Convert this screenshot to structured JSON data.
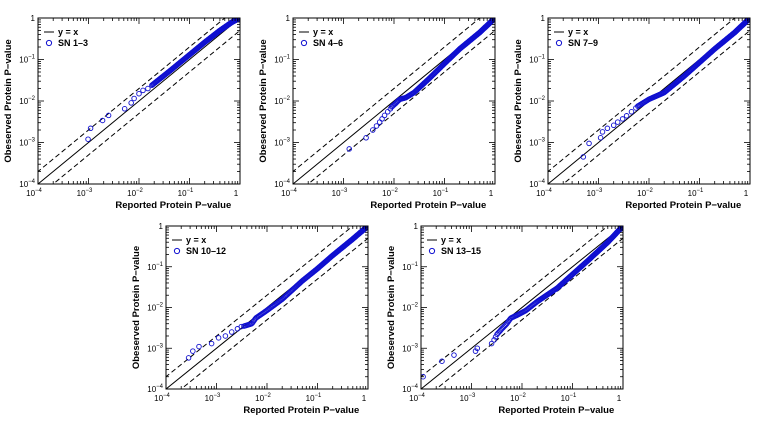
{
  "chart_data": [
    {
      "type": "scatter",
      "xlabel": "Reported Protein P−value",
      "ylabel": "Obeserved Protein P−value",
      "xscale": "log",
      "yscale": "log",
      "xlim": [
        0.0001,
        1
      ],
      "ylim": [
        0.0001,
        1
      ],
      "tick_labels": [
        "10",
        "10",
        "10",
        "10",
        "1"
      ],
      "tick_exponents": [
        "−4",
        "−3",
        "−2",
        "−1",
        ""
      ],
      "legend": {
        "position": "top-left",
        "entries": [
          {
            "label": "y = x",
            "marker": "line"
          },
          {
            "label": "SN 1–3",
            "marker": "circle"
          }
        ]
      },
      "reference_lines": [
        {
          "name": "y = x",
          "style": "solid",
          "factor": 1
        },
        {
          "style": "dashed",
          "factor": 2
        },
        {
          "style": "dashed",
          "factor": 0.5
        }
      ],
      "series": [
        {
          "name": "SN 1–3",
          "points": [
            [
              0.00098,
              0.0012
            ],
            [
              0.0011,
              0.0022
            ],
            [
              0.0019,
              0.0034
            ],
            [
              0.0025,
              0.0045
            ],
            [
              0.0052,
              0.0065
            ],
            [
              0.007,
              0.009
            ],
            [
              0.008,
              0.0115
            ],
            [
              0.01,
              0.015
            ],
            [
              0.012,
              0.018
            ],
            [
              0.015,
              0.02
            ]
          ],
          "tail": [
            [
              0.018,
              0.024
            ],
            [
              0.04,
              0.052
            ],
            [
              0.1,
              0.13
            ],
            [
              0.2,
              0.26
            ],
            [
              0.4,
              0.5
            ],
            [
              0.7,
              0.8
            ],
            [
              1,
              1
            ]
          ],
          "tail_density": 240
        }
      ]
    },
    {
      "type": "scatter",
      "xlabel": "Reported Protein P−value",
      "ylabel": "Obeserved Protein P−value",
      "xscale": "log",
      "yscale": "log",
      "xlim": [
        0.0001,
        1
      ],
      "ylim": [
        0.0001,
        1
      ],
      "tick_labels": [
        "10",
        "10",
        "10",
        "10",
        "1"
      ],
      "tick_exponents": [
        "−4",
        "−3",
        "−2",
        "−1",
        ""
      ],
      "legend": {
        "position": "top-left",
        "entries": [
          {
            "label": "y = x",
            "marker": "line"
          },
          {
            "label": "SN 4–6",
            "marker": "circle"
          }
        ]
      },
      "reference_lines": [
        {
          "name": "y = x",
          "style": "solid",
          "factor": 1
        },
        {
          "style": "dashed",
          "factor": 2
        },
        {
          "style": "dashed",
          "factor": 0.5
        }
      ],
      "series": [
        {
          "name": "SN 4–6",
          "points": [
            [
              0.0013,
              0.0007
            ],
            [
              0.0028,
              0.0013
            ],
            [
              0.0038,
              0.002
            ],
            [
              0.0045,
              0.0025
            ],
            [
              0.0052,
              0.0031
            ],
            [
              0.0058,
              0.0037
            ],
            [
              0.0065,
              0.0045
            ],
            [
              0.0075,
              0.0055
            ],
            [
              0.0085,
              0.0065
            ]
          ],
          "tail": [
            [
              0.009,
              0.0072
            ],
            [
              0.011,
              0.009
            ],
            [
              0.013,
              0.011
            ],
            [
              0.017,
              0.012
            ],
            [
              0.025,
              0.016
            ],
            [
              0.05,
              0.035
            ],
            [
              0.1,
              0.08
            ],
            [
              0.2,
              0.18
            ],
            [
              0.5,
              0.45
            ],
            [
              1,
              1
            ]
          ],
          "tail_density": 240
        }
      ]
    },
    {
      "type": "scatter",
      "xlabel": "Reported Protein P−value",
      "ylabel": "Obeserved Protein P−value",
      "xscale": "log",
      "yscale": "log",
      "xlim": [
        0.0001,
        1
      ],
      "ylim": [
        0.0001,
        1
      ],
      "tick_labels": [
        "10",
        "10",
        "10",
        "10",
        "1"
      ],
      "tick_exponents": [
        "−4",
        "−3",
        "−2",
        "−1",
        ""
      ],
      "legend": {
        "position": "top-left",
        "entries": [
          {
            "label": "y = x",
            "marker": "line"
          },
          {
            "label": "SN 7–9",
            "marker": "circle"
          }
        ]
      },
      "reference_lines": [
        {
          "name": "y = x",
          "style": "solid",
          "factor": 1
        },
        {
          "style": "dashed",
          "factor": 2
        },
        {
          "style": "dashed",
          "factor": 0.5
        }
      ],
      "series": [
        {
          "name": "SN 7–9",
          "points": [
            [
              0.0005,
              0.00045
            ],
            [
              0.00065,
              0.00095
            ],
            [
              0.0011,
              0.0013
            ],
            [
              0.0012,
              0.0018
            ],
            [
              0.0015,
              0.0022
            ],
            [
              0.002,
              0.0026
            ],
            [
              0.0024,
              0.0031
            ],
            [
              0.003,
              0.0037
            ],
            [
              0.0036,
              0.0044
            ],
            [
              0.0045,
              0.0055
            ],
            [
              0.0055,
              0.0068
            ]
          ],
          "tail": [
            [
              0.006,
              0.0075
            ],
            [
              0.01,
              0.011
            ],
            [
              0.02,
              0.016
            ],
            [
              0.05,
              0.04
            ],
            [
              0.1,
              0.085
            ],
            [
              0.2,
              0.18
            ],
            [
              0.5,
              0.45
            ],
            [
              1,
              1
            ]
          ],
          "tail_density": 240
        }
      ]
    },
    {
      "type": "scatter",
      "xlabel": "Reported Protein P−value",
      "ylabel": "Obeserved Protein P−value",
      "xscale": "log",
      "yscale": "log",
      "xlim": [
        0.0001,
        1
      ],
      "ylim": [
        0.0001,
        1
      ],
      "tick_labels": [
        "10",
        "10",
        "10",
        "10",
        "1"
      ],
      "tick_exponents": [
        "−4",
        "−3",
        "−2",
        "−1",
        ""
      ],
      "legend": {
        "position": "top-left",
        "entries": [
          {
            "label": "y = x",
            "marker": "line"
          },
          {
            "label": "SN 10–12",
            "marker": "circle"
          }
        ]
      },
      "reference_lines": [
        {
          "name": "y = x",
          "style": "solid",
          "factor": 1
        },
        {
          "style": "dashed",
          "factor": 2
        },
        {
          "style": "dashed",
          "factor": 0.5
        }
      ],
      "series": [
        {
          "name": "SN 10–12",
          "points": [
            [
              0.00028,
              0.00058
            ],
            [
              0.00034,
              0.00085
            ],
            [
              0.00045,
              0.0011
            ],
            [
              0.0008,
              0.0013
            ],
            [
              0.0011,
              0.0018
            ],
            [
              0.0015,
              0.002
            ],
            [
              0.002,
              0.0025
            ],
            [
              0.0026,
              0.003
            ],
            [
              0.0031,
              0.0034
            ]
          ],
          "tail": [
            [
              0.0035,
              0.0035
            ],
            [
              0.005,
              0.004
            ],
            [
              0.006,
              0.0055
            ],
            [
              0.01,
              0.0085
            ],
            [
              0.02,
              0.016
            ],
            [
              0.05,
              0.045
            ],
            [
              0.1,
              0.09
            ],
            [
              0.2,
              0.19
            ],
            [
              0.5,
              0.48
            ],
            [
              1,
              1
            ]
          ],
          "tail_density": 240
        }
      ]
    },
    {
      "type": "scatter",
      "xlabel": "Reported Protein P−value",
      "ylabel": "Obeserved Protein P−value",
      "xscale": "log",
      "yscale": "log",
      "xlim": [
        0.0001,
        1
      ],
      "ylim": [
        0.0001,
        1
      ],
      "tick_labels": [
        "10",
        "10",
        "10",
        "10",
        "1"
      ],
      "tick_exponents": [
        "−4",
        "−3",
        "−2",
        "−1",
        ""
      ],
      "legend": {
        "position": "top-left",
        "entries": [
          {
            "label": "y = x",
            "marker": "line"
          },
          {
            "label": "SN 13–15",
            "marker": "circle"
          }
        ]
      },
      "reference_lines": [
        {
          "name": "y = x",
          "style": "solid",
          "factor": 1
        },
        {
          "style": "dashed",
          "factor": 2
        },
        {
          "style": "dashed",
          "factor": 0.5
        }
      ],
      "series": [
        {
          "name": "SN 13–15",
          "points": [
            [
              0.00011,
              0.0002
            ],
            [
              0.00026,
              0.00048
            ],
            [
              0.00045,
              0.00068
            ],
            [
              0.0012,
              0.00085
            ],
            [
              0.0013,
              0.001
            ],
            [
              0.0025,
              0.0013
            ],
            [
              0.0028,
              0.0016
            ],
            [
              0.003,
              0.0019
            ]
          ],
          "tail": [
            [
              0.0032,
              0.0022
            ],
            [
              0.004,
              0.003
            ],
            [
              0.005,
              0.004
            ],
            [
              0.006,
              0.0055
            ],
            [
              0.008,
              0.0065
            ],
            [
              0.012,
              0.0085
            ],
            [
              0.02,
              0.014
            ],
            [
              0.05,
              0.03
            ],
            [
              0.1,
              0.065
            ],
            [
              0.2,
              0.14
            ],
            [
              0.5,
              0.4
            ],
            [
              1,
              1
            ]
          ],
          "tail_density": 240
        }
      ]
    }
  ]
}
